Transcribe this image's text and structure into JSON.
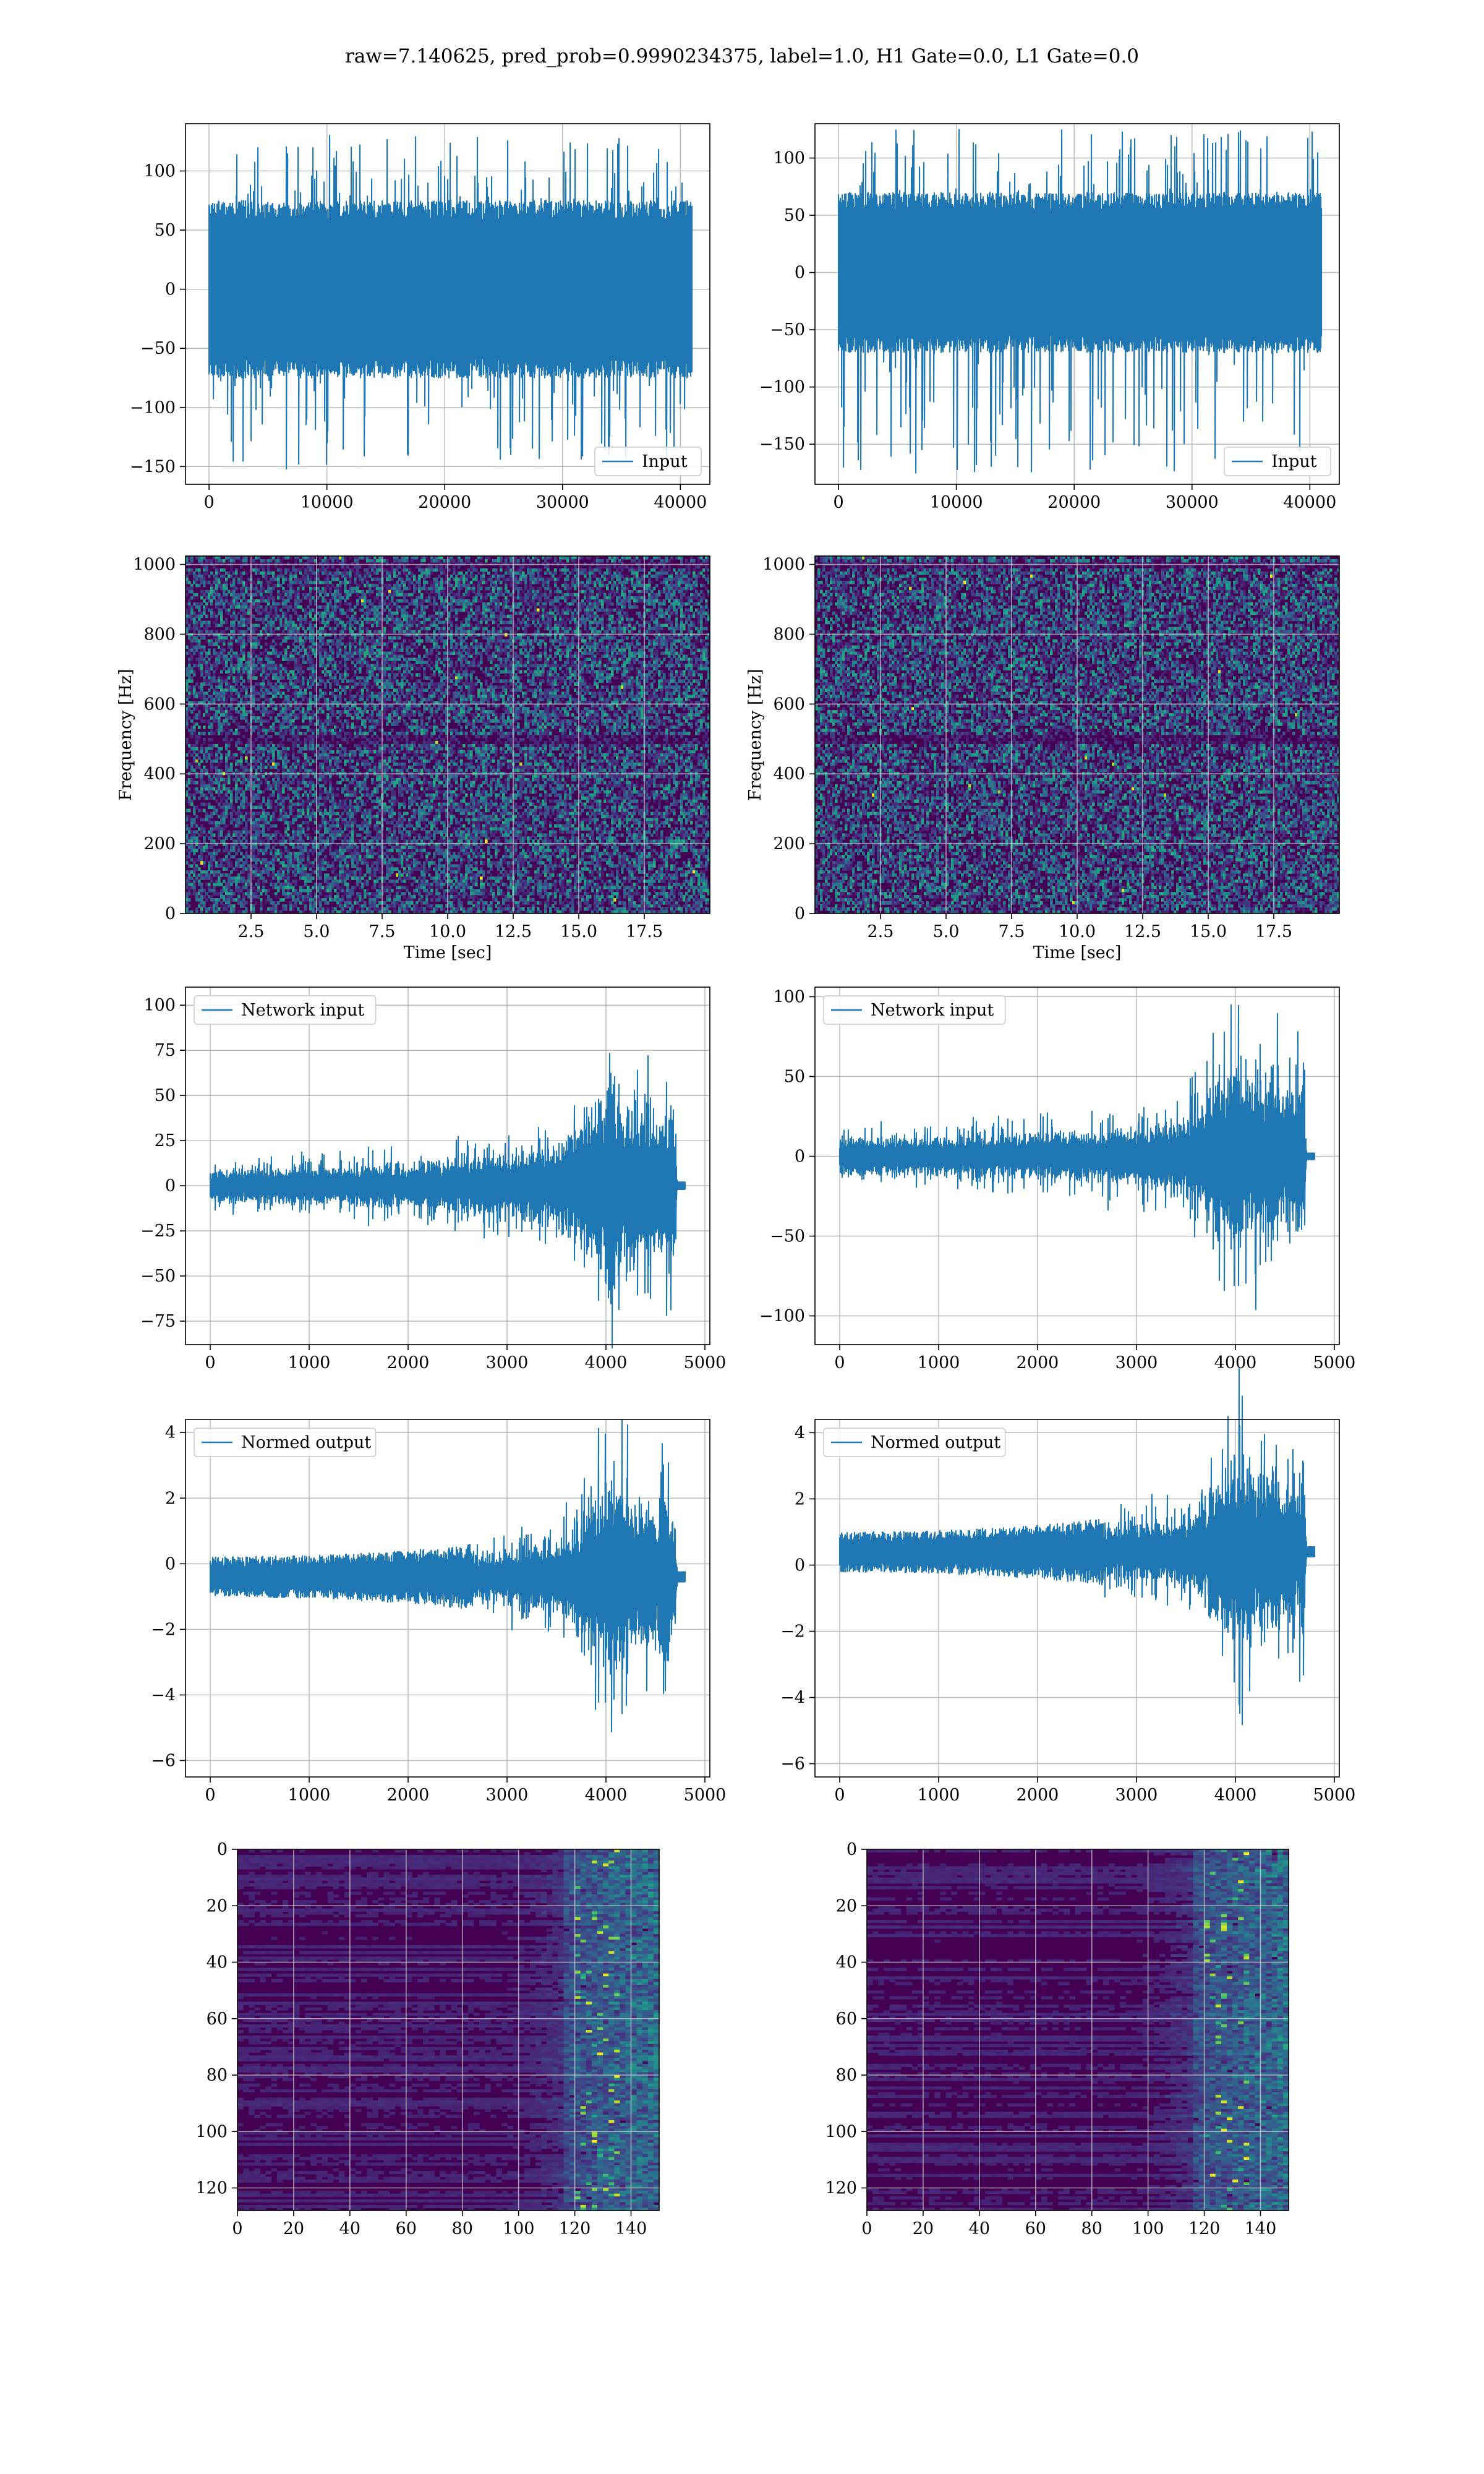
{
  "title": "raw=7.140625, pred_prob=0.9990234375, label=1.0, H1 Gate=0.0, L1 Gate=0.0",
  "colors": {
    "series": "#1f77b4",
    "grid_light": "#b0b0b0",
    "grid_dark": "#d9d9d9",
    "viridis_low": "#440154",
    "viridis_mid": "#21918c",
    "viridis_high": "#fde725"
  },
  "chart_data": [
    {
      "type": "line",
      "id": "h1-input",
      "series_name": "Input",
      "legend": "lower right",
      "xlim": [
        -2000,
        42500
      ],
      "ylim": [
        -165,
        140
      ],
      "xticks": [
        0,
        10000,
        20000,
        30000,
        40000
      ],
      "yticks": [
        -150,
        -100,
        -50,
        0,
        50,
        100
      ],
      "n_points": 40960,
      "envelope": {
        "typical": 75,
        "max": 130,
        "min": -152
      },
      "grid": true
    },
    {
      "type": "line",
      "id": "l1-input",
      "series_name": "Input",
      "legend": "lower right",
      "xlim": [
        -2000,
        42500
      ],
      "ylim": [
        -185,
        130
      ],
      "xticks": [
        0,
        10000,
        20000,
        30000,
        40000
      ],
      "yticks": [
        -150,
        -100,
        -50,
        0,
        50,
        100
      ],
      "n_points": 40960,
      "envelope": {
        "typical": 70,
        "max": 125,
        "min": -175
      },
      "grid": true
    },
    {
      "type": "heatmap",
      "id": "h1-spectrogram",
      "xlabel": "Time [sec]",
      "ylabel": "Frequency [Hz]",
      "xlim": [
        0,
        20
      ],
      "ylim": [
        0,
        1024
      ],
      "xticks": [
        2.5,
        5.0,
        7.5,
        10.0,
        12.5,
        15.0,
        17.5
      ],
      "xtick_labels": [
        "2.5",
        "5.0",
        "7.5",
        "10.0",
        "12.5",
        "15.0",
        "17.5"
      ],
      "yticks": [
        0,
        200,
        400,
        600,
        800,
        1000
      ],
      "colormap": "viridis",
      "grid": true
    },
    {
      "type": "heatmap",
      "id": "l1-spectrogram",
      "xlabel": "Time [sec]",
      "ylabel": "Frequency [Hz]",
      "xlim": [
        0,
        20
      ],
      "ylim": [
        0,
        1024
      ],
      "xticks": [
        2.5,
        5.0,
        7.5,
        10.0,
        12.5,
        15.0,
        17.5
      ],
      "xtick_labels": [
        "2.5",
        "5.0",
        "7.5",
        "10.0",
        "12.5",
        "15.0",
        "17.5"
      ],
      "yticks": [
        0,
        200,
        400,
        600,
        800,
        1000
      ],
      "colormap": "viridis",
      "grid": true
    },
    {
      "type": "line",
      "id": "h1-network-input",
      "series_name": "Network input",
      "legend": "upper left",
      "xlim": [
        -250,
        5050
      ],
      "ylim": [
        -88,
        110
      ],
      "xticks": [
        0,
        1000,
        2000,
        3000,
        4000,
        5000
      ],
      "yticks": [
        -75,
        -50,
        -25,
        0,
        25,
        50,
        75,
        100
      ],
      "n_points": 4800,
      "amplitude_profile": [
        [
          0,
          12
        ],
        [
          1000,
          13
        ],
        [
          2000,
          16
        ],
        [
          3000,
          22
        ],
        [
          3500,
          28
        ],
        [
          3700,
          45
        ],
        [
          4000,
          75
        ],
        [
          4300,
          60
        ],
        [
          4700,
          55
        ],
        [
          4720,
          2
        ],
        [
          4800,
          2
        ]
      ],
      "ringdown_offset": 0,
      "grid": true
    },
    {
      "type": "line",
      "id": "l1-network-input",
      "series_name": "Network input",
      "legend": "upper left",
      "xlim": [
        -250,
        5050
      ],
      "ylim": [
        -118,
        106
      ],
      "xticks": [
        0,
        1000,
        2000,
        3000,
        4000,
        5000
      ],
      "yticks": [
        -100,
        -50,
        0,
        50,
        100
      ],
      "n_points": 4800,
      "amplitude_profile": [
        [
          0,
          15
        ],
        [
          1000,
          16
        ],
        [
          2000,
          19
        ],
        [
          3000,
          25
        ],
        [
          3500,
          33
        ],
        [
          3700,
          50
        ],
        [
          4000,
          80
        ],
        [
          4300,
          70
        ],
        [
          4700,
          60
        ],
        [
          4720,
          2
        ],
        [
          4800,
          2
        ]
      ],
      "ringdown_offset": 0,
      "grid": true
    },
    {
      "type": "line",
      "id": "h1-normed-output",
      "series_name": "Normed output",
      "legend": "upper left",
      "xlim": [
        -250,
        5050
      ],
      "ylim": [
        -6.5,
        4.4
      ],
      "xticks": [
        0,
        1000,
        2000,
        3000,
        4000,
        5000
      ],
      "yticks": [
        -6,
        -4,
        -2,
        0,
        2,
        4
      ],
      "n_points": 4800,
      "offset": -0.4,
      "amplitude_profile": [
        [
          0,
          0.6
        ],
        [
          1000,
          0.65
        ],
        [
          2000,
          0.8
        ],
        [
          3000,
          1.1
        ],
        [
          3500,
          1.4
        ],
        [
          3700,
          2.3
        ],
        [
          4000,
          3.8
        ],
        [
          4300,
          3.0
        ],
        [
          4700,
          2.8
        ],
        [
          4720,
          0.15
        ],
        [
          4800,
          0.15
        ]
      ],
      "grid": true
    },
    {
      "type": "line",
      "id": "l1-normed-output",
      "series_name": "Normed output",
      "legend": "upper left",
      "xlim": [
        -250,
        5050
      ],
      "ylim": [
        -6.4,
        4.4
      ],
      "xticks": [
        0,
        1000,
        2000,
        3000,
        4000,
        5000
      ],
      "yticks": [
        -6,
        -4,
        -2,
        0,
        2,
        4
      ],
      "n_points": 4800,
      "offset": 0.4,
      "amplitude_profile": [
        [
          0,
          0.6
        ],
        [
          1000,
          0.65
        ],
        [
          2000,
          0.8
        ],
        [
          3000,
          1.1
        ],
        [
          3500,
          1.4
        ],
        [
          3700,
          2.3
        ],
        [
          4000,
          3.9
        ],
        [
          4300,
          3.2
        ],
        [
          4700,
          2.8
        ],
        [
          4720,
          0.15
        ],
        [
          4800,
          0.15
        ]
      ],
      "grid": true
    },
    {
      "type": "heatmap",
      "id": "h1-feature-map",
      "xlim": [
        0,
        150
      ],
      "ylim": [
        128,
        0
      ],
      "xticks": [
        0,
        20,
        40,
        60,
        80,
        100,
        120,
        140
      ],
      "yticks": [
        0,
        20,
        40,
        60,
        80,
        100,
        120
      ],
      "colormap": "viridis",
      "grid": true
    },
    {
      "type": "heatmap",
      "id": "l1-feature-map",
      "xlim": [
        0,
        150
      ],
      "ylim": [
        128,
        0
      ],
      "xticks": [
        0,
        20,
        40,
        60,
        80,
        100,
        120,
        140
      ],
      "yticks": [
        0,
        20,
        40,
        60,
        80,
        100,
        120
      ],
      "colormap": "viridis",
      "grid": true
    }
  ]
}
